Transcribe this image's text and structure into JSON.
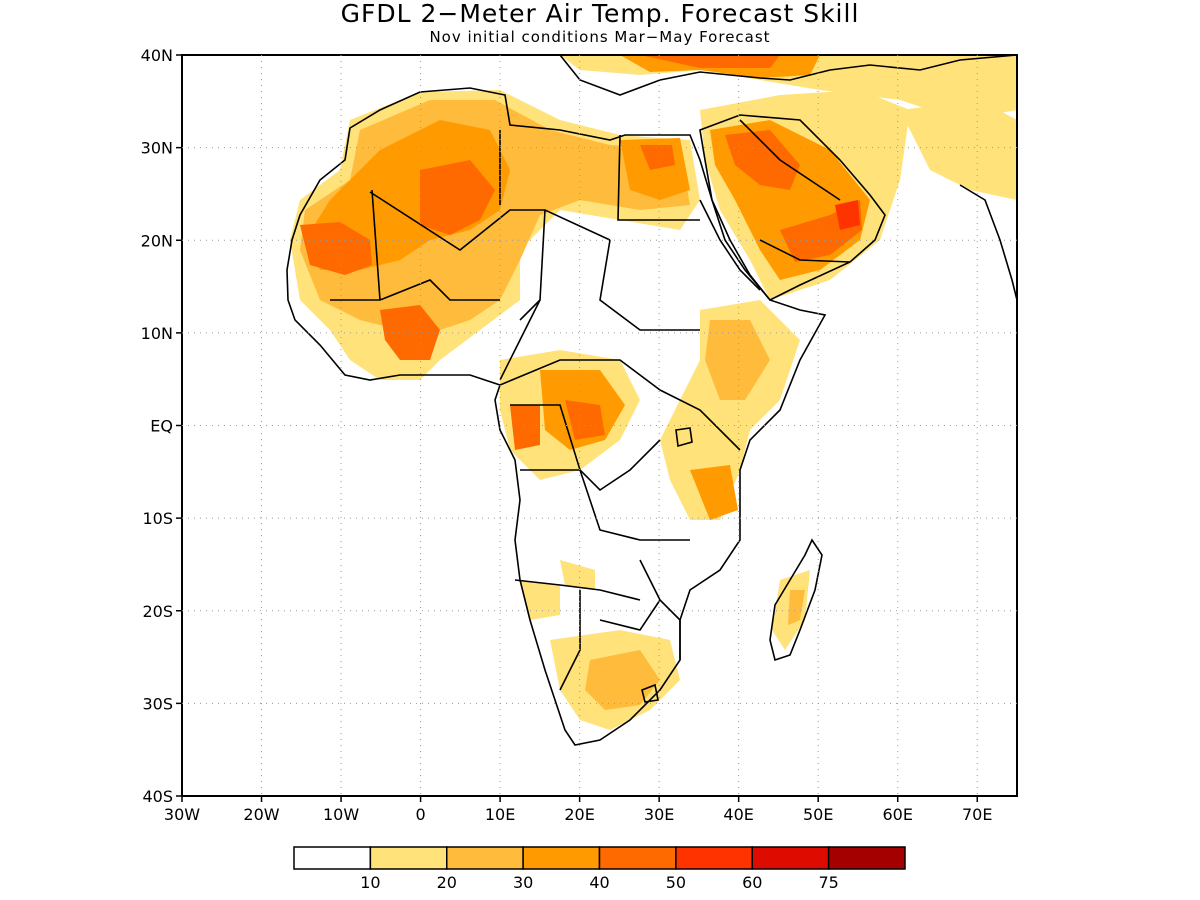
{
  "title": "GFDL 2−Meter Air Temp. Forecast Skill",
  "subtitle": "Nov initial conditions  Mar−May Forecast",
  "map": {
    "lat_labels": [
      "40N",
      "30N",
      "20N",
      "10N",
      "EQ",
      "10S",
      "20S",
      "30S",
      "40S"
    ],
    "lon_labels": [
      "30W",
      "20W",
      "10W",
      "0",
      "10E",
      "20E",
      "30E",
      "40E",
      "50E",
      "60E",
      "70E"
    ],
    "grid": "dotted",
    "extent": {
      "lon": [
        -30,
        75
      ],
      "lat": [
        -40,
        40
      ]
    }
  },
  "legend": {
    "colors": [
      "#ffffff",
      "#ffe27a",
      "#ffbb3c",
      "#ff9a00",
      "#ff6a00",
      "#ff3300",
      "#de0c00",
      "#a50000"
    ],
    "labels": [
      "10",
      "20",
      "30",
      "40",
      "50",
      "60",
      "75"
    ]
  }
}
